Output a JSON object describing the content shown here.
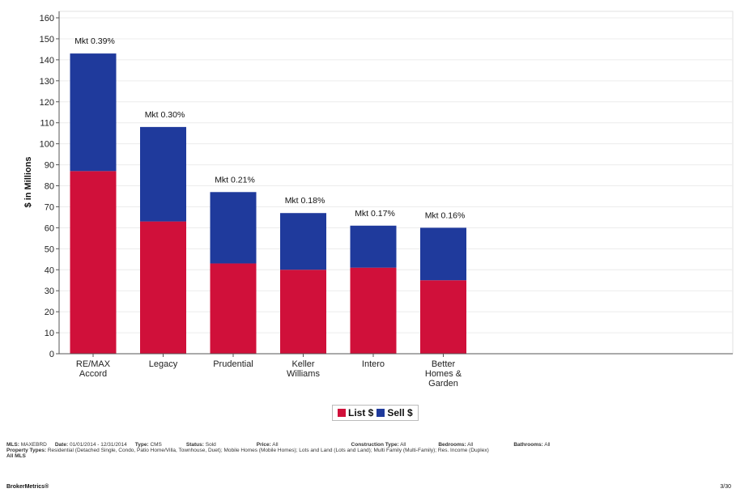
{
  "chart_data": {
    "type": "bar",
    "stacked": true,
    "categories": [
      "RE/MAX Accord",
      "Legacy",
      "Prudential",
      "Keller Williams",
      "Intero",
      "Better Homes & Garden"
    ],
    "category_lines": [
      [
        "RE/MAX",
        "Accord"
      ],
      [
        "Legacy"
      ],
      [
        "Prudential"
      ],
      [
        "Keller",
        "Williams"
      ],
      [
        "Intero"
      ],
      [
        "Better",
        "Homes &",
        "Garden"
      ]
    ],
    "series": [
      {
        "name": "List $",
        "color": "#d0103a",
        "values": [
          87,
          63,
          43,
          40,
          41,
          35
        ]
      },
      {
        "name": "Sell $",
        "color": "#1f3a9c",
        "values": [
          56,
          45,
          34,
          27,
          20,
          25
        ]
      }
    ],
    "data_labels": [
      "Mkt 0.39%",
      "Mkt 0.30%",
      "Mkt 0.21%",
      "Mkt 0.18%",
      "Mkt 0.17%",
      "Mkt 0.16%"
    ],
    "ylabel": "$ in Millions",
    "xlabel": "",
    "ylim": [
      0,
      160
    ],
    "yticks": [
      0,
      10,
      20,
      30,
      40,
      50,
      60,
      70,
      80,
      90,
      100,
      110,
      120,
      130,
      140,
      150,
      160
    ],
    "grid": true,
    "legend": "bottom-center"
  },
  "legend": {
    "list_label": "List $",
    "sell_label": "Sell $"
  },
  "criteria": {
    "mls_label": "MLS:",
    "mls_value": "MAXEBRD",
    "date_label": "Date:",
    "date_value": "01/01/2014 - 12/31/2014",
    "type_label": "Type:",
    "type_value": "CMS",
    "status_label": "Status:",
    "status_value": "Sold",
    "price_label": "Price:",
    "price_value": "All",
    "construction_label": "Construction Type:",
    "construction_value": "All",
    "bedrooms_label": "Bedrooms:",
    "bedrooms_value": "All",
    "bathrooms_label": "Bathrooms:",
    "bathrooms_value": "All",
    "property_label": "Property Types:",
    "property_value": "Residential (Detached Single, Condo, Patio Home/Villa, Townhouse, Duet); Mobile Homes (Mobile Homes); Lots and Land (Lots and Land); Multi Family (Multi-Family); Res. Income (Duplex)",
    "all_mls": "All MLS"
  },
  "footer": {
    "brand": "BrokerMetrics®",
    "page": "3/30"
  }
}
